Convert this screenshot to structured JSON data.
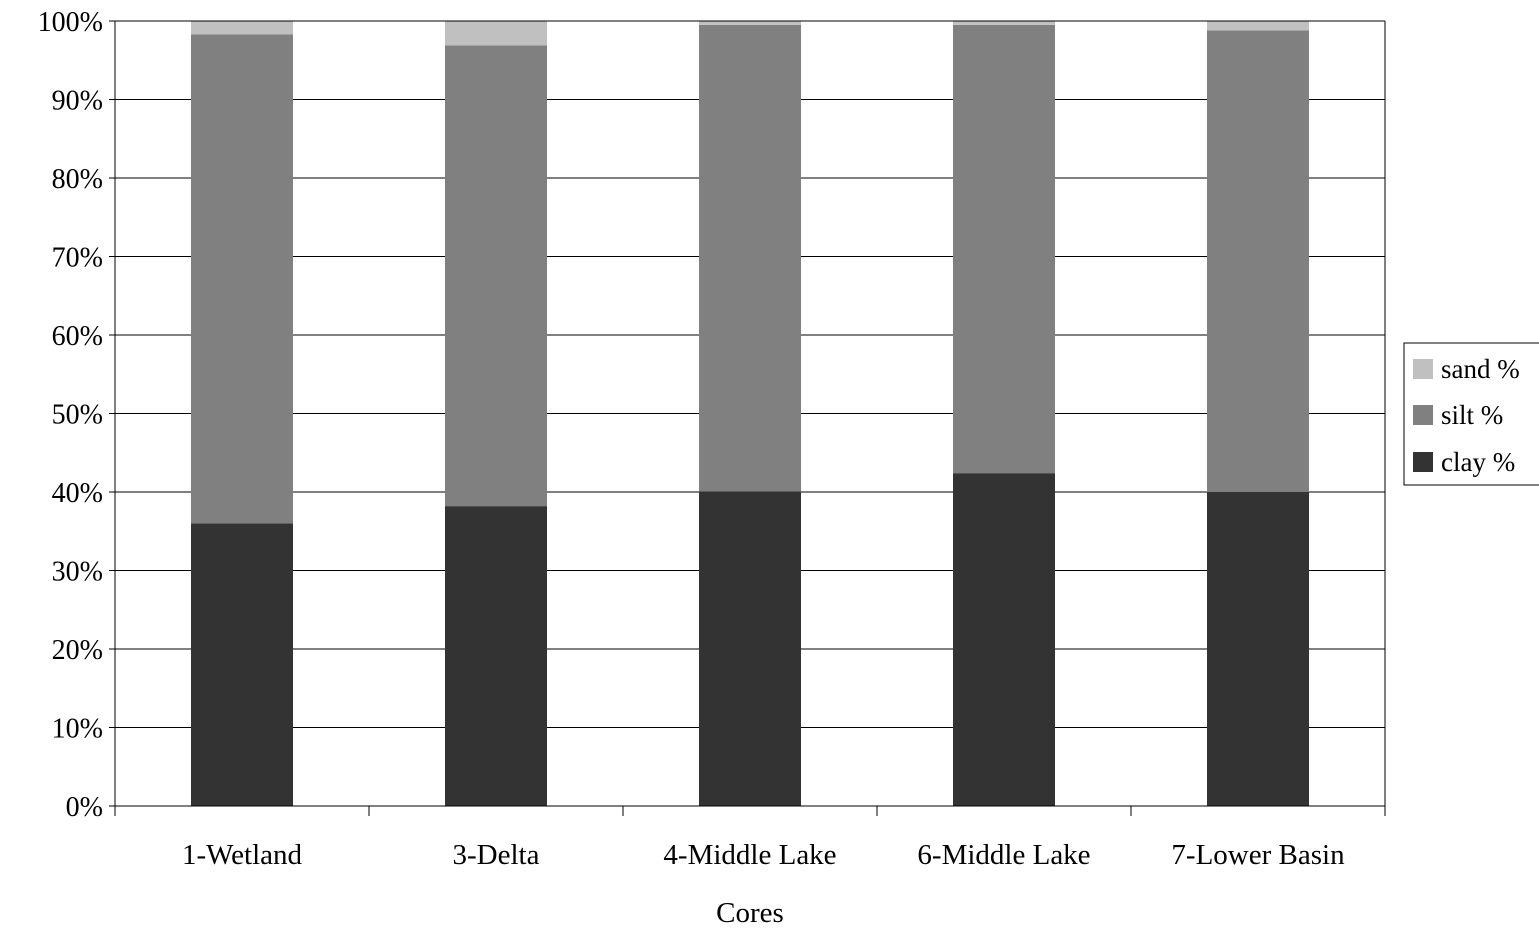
{
  "chart_data": {
    "type": "bar",
    "stacked": true,
    "percent_stacked": true,
    "categories": [
      "1-Wetland",
      "3-Delta",
      "4-Middle Lake",
      "6-Middle Lake",
      "7-Lower Basin"
    ],
    "series": [
      {
        "name": "clay %",
        "values": [
          36.0,
          38.2,
          40.1,
          42.4,
          40.0
        ],
        "color": "#333333"
      },
      {
        "name": "silt %",
        "values": [
          62.3,
          58.7,
          59.4,
          57.1,
          58.8
        ],
        "color": "#808080"
      },
      {
        "name": "sand %",
        "values": [
          1.7,
          3.1,
          0.5,
          0.5,
          1.2
        ],
        "color": "#c0c0c0"
      }
    ],
    "xlabel": "Cores",
    "ylabel": "",
    "ylim": [
      0,
      100
    ],
    "yticks": [
      "0%",
      "10%",
      "20%",
      "30%",
      "40%",
      "50%",
      "60%",
      "70%",
      "80%",
      "90%",
      "100%"
    ],
    "grid": true,
    "legend": {
      "position": "right",
      "entries": [
        "sand %",
        "silt %",
        "clay %"
      ]
    }
  }
}
